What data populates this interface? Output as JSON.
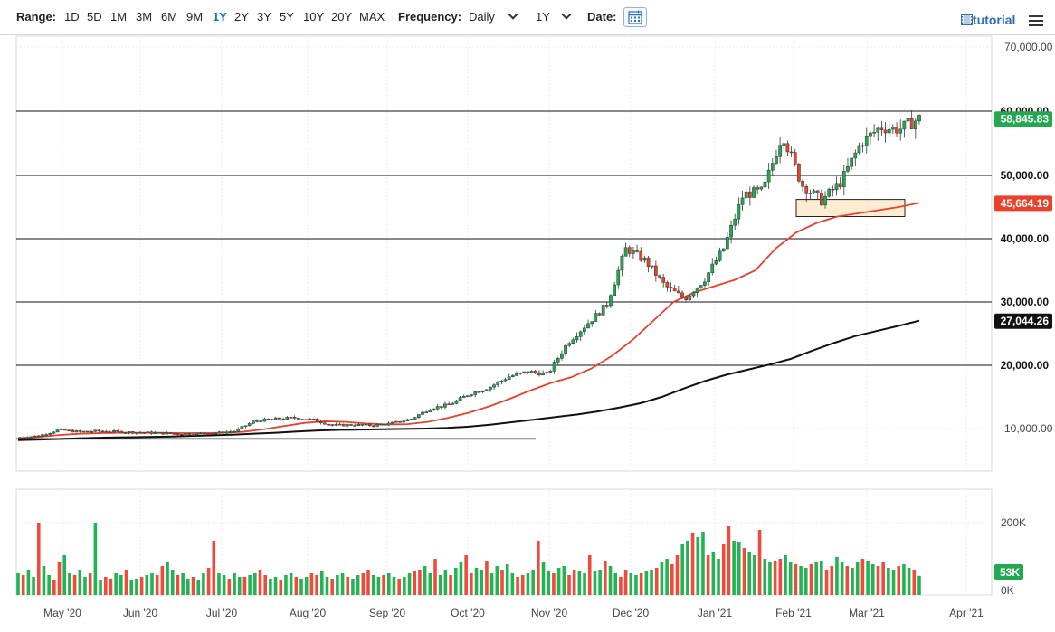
{
  "toolbar": {
    "range_label": "Range:",
    "ranges": [
      "1D",
      "5D",
      "1M",
      "3M",
      "6M",
      "9M",
      "1Y",
      "2Y",
      "3Y",
      "5Y",
      "10Y",
      "20Y",
      "MAX"
    ],
    "active_range": "1Y",
    "frequency_label": "Frequency:",
    "frequency_value": "Daily",
    "period_value": "1Y",
    "date_label": "Date:",
    "tutorial_label": "tutorial",
    "tutorial_icon": "film-icon",
    "menu_icon": "hamburger-menu-icon",
    "calendar_icon": "calendar-icon"
  },
  "chart_data": {
    "type": "candlestick",
    "ylim": [
      0,
      70000
    ],
    "y_ticks": [
      "70,000.00",
      "10,000.00"
    ],
    "x_ticks": [
      "May '20",
      "Jun '20",
      "Jul '20",
      "Aug '20",
      "Sep '20",
      "Oct '20",
      "Nov '20",
      "Dec '20",
      "Jan '21",
      "Feb '21",
      "Mar '21",
      "Apr '21"
    ],
    "horizontal_levels": [
      {
        "value": 60000,
        "label": "60,000.00"
      },
      {
        "value": 50000,
        "label": "50,000.00"
      },
      {
        "value": 40000,
        "label": "40,000.00"
      },
      {
        "value": 30000,
        "label": "30,000.00"
      },
      {
        "value": 20000,
        "label": "20,000.00"
      }
    ],
    "price_markers": [
      {
        "value": 58845.83,
        "label": "58,845.83",
        "color": "#22a94f"
      },
      {
        "value": 45664.19,
        "label": "45,664.19",
        "color": "#e8412c"
      },
      {
        "value": 27044.26,
        "label": "27,044.26",
        "color": "#111111"
      }
    ],
    "support_zone": {
      "from": 43500,
      "to": 46200
    },
    "trendline": {
      "start": "May '20",
      "end": "Oct '20",
      "value": 8400
    },
    "close_series": [
      8600,
      8900,
      9800,
      9500,
      9600,
      9500,
      9400,
      9300,
      9200,
      9200,
      9300,
      9600,
      11200,
      11500,
      11700,
      11400,
      10500,
      10600,
      10500,
      10800,
      11500,
      13200,
      13800,
      15500,
      16500,
      18200,
      19000,
      18600,
      23500,
      26500,
      29500,
      38500,
      36500,
      32500,
      30500,
      33500,
      38500,
      47000,
      47500,
      56500,
      48500,
      46000,
      49000,
      55000,
      57500,
      57200,
      58845.83
    ],
    "moving_averages": [
      {
        "name": "",
        "color": "#e8412c",
        "values": [
          8500,
          8700,
          9000,
          9200,
          9300,
          9350,
          9350,
          9350,
          9300,
          9300,
          9350,
          9500,
          9900,
          10400,
          10900,
          11150,
          11050,
          10800,
          10650,
          10700,
          11050,
          11700,
          12500,
          13500,
          14700,
          16000,
          17200,
          18100,
          19500,
          21500,
          24000,
          27000,
          30000,
          31500,
          32500,
          33500,
          35000,
          38500,
          41000,
          42500,
          43500,
          44000,
          44500,
          45000,
          45664.19
        ]
      },
      {
        "name": "",
        "color": "#111111",
        "values": [
          8200,
          8300,
          8400,
          8500,
          8600,
          8650,
          8700,
          8750,
          8850,
          8950,
          9050,
          9200,
          9350,
          9550,
          9700,
          9800,
          9850,
          9900,
          9950,
          10000,
          10100,
          10300,
          10600,
          11000,
          11400,
          11800,
          12200,
          12700,
          13300,
          14000,
          15000,
          16300,
          17500,
          18500,
          19300,
          20100,
          21000,
          22300,
          23500,
          24600,
          25400,
          26200,
          27044.26
        ]
      }
    ],
    "volume": {
      "y_ticks": [
        "200K",
        "0K"
      ],
      "last_label": "53K",
      "values": [
        60,
        55,
        70,
        50,
        200,
        80,
        55,
        40,
        90,
        110,
        60,
        55,
        70,
        50,
        60,
        200,
        40,
        50,
        45,
        60,
        55,
        70,
        40,
        45,
        50,
        55,
        60,
        55,
        80,
        90,
        70,
        55,
        60,
        45,
        50,
        40,
        60,
        75,
        150,
        60,
        55,
        45,
        60,
        50,
        50,
        55,
        60,
        70,
        55,
        45,
        50,
        40,
        55,
        60,
        50,
        45,
        50,
        60,
        55,
        65,
        50,
        45,
        55,
        60,
        50,
        45,
        55,
        60,
        70,
        55,
        50,
        55,
        60,
        50,
        45,
        50,
        60,
        65,
        70,
        80,
        60,
        100,
        55,
        70,
        55,
        75,
        90,
        110,
        60,
        75,
        70,
        95,
        60,
        80,
        70,
        85,
        60,
        50,
        55,
        60,
        70,
        150,
        90,
        65,
        60,
        75,
        80,
        55,
        70,
        65,
        60,
        110,
        65,
        70,
        95,
        80,
        60,
        50,
        70,
        60,
        55,
        60,
        65,
        70,
        75,
        90,
        100,
        85,
        110,
        140,
        150,
        170,
        160,
        175,
        110,
        120,
        100,
        140,
        190,
        150,
        145,
        130,
        120,
        110,
        180,
        100,
        90,
        95,
        100,
        110,
        90,
        85,
        80,
        75,
        85,
        90,
        95,
        70,
        80,
        105,
        90,
        80,
        75,
        90,
        100,
        95,
        85,
        80,
        90,
        75,
        70,
        80,
        85,
        75,
        70,
        53
      ],
      "colors_up_ratio": 0.55
    }
  }
}
